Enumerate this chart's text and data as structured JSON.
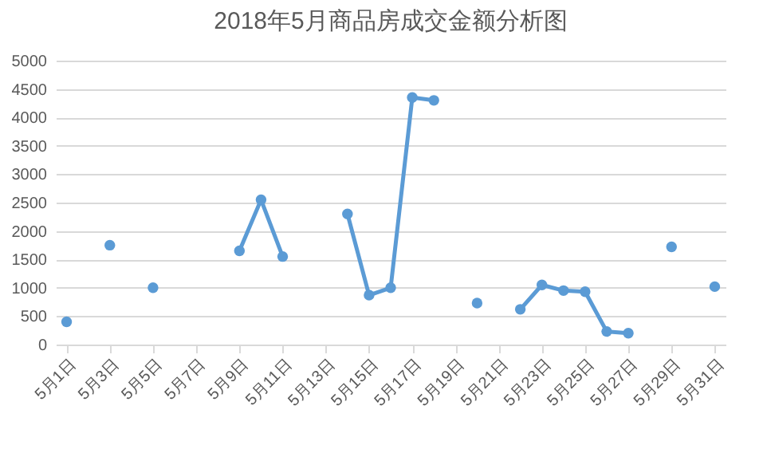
{
  "chart_data": {
    "type": "line",
    "title": "2018年5月商品房成交金额分析图",
    "categories": [
      "5月1日",
      null,
      "5月3日",
      null,
      "5月5日",
      null,
      "5月7日",
      null,
      "5月9日",
      null,
      "5月11日",
      null,
      "5月13日",
      null,
      "5月15日",
      null,
      "5月17日",
      null,
      "5月19日",
      null,
      "5月21日",
      null,
      "5月23日",
      null,
      "5月25日",
      null,
      "5月27日",
      null,
      "5月29日",
      null,
      "5月31日"
    ],
    "series": [
      {
        "color": "#5b9bd5",
        "values": [
          400,
          null,
          1750,
          null,
          1000,
          null,
          null,
          null,
          1650,
          2550,
          1550,
          null,
          null,
          2300,
          870,
          1000,
          4350,
          4300,
          null,
          730,
          null,
          620,
          1050,
          950,
          930,
          230,
          200,
          null,
          1720,
          null,
          1020
        ]
      }
    ],
    "ylim": [
      0,
      5000
    ],
    "yticks": [
      0,
      500,
      1000,
      1500,
      2000,
      2500,
      3000,
      3500,
      4000,
      4500,
      5000
    ],
    "grid": "y",
    "marker": "circle",
    "line_style": "solid"
  }
}
